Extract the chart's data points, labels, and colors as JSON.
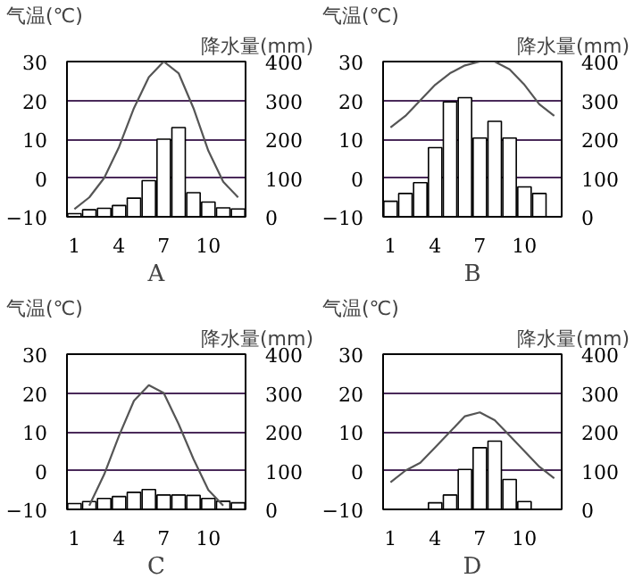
{
  "chart_data": [
    {
      "type": "bar",
      "xlabel": "A",
      "ylabel": "气温(℃)",
      "y2label": "降水量(mm)",
      "categories": [
        "1",
        null,
        null,
        "4",
        null,
        null,
        "7",
        null,
        null,
        "10",
        null,
        null
      ],
      "ylim": [
        -10,
        30
      ],
      "yticks": [
        -10,
        0,
        10,
        20,
        30
      ],
      "y2lim": [
        0,
        400
      ],
      "y2ticks": [
        0,
        100,
        200,
        300,
        400
      ],
      "grid": "y",
      "series": [
        {
          "type": "bar",
          "axis": "y2",
          "color": "#ffffff",
          "values": [
            8,
            18,
            22,
            29,
            48,
            93,
            200,
            230,
            62,
            38,
            23,
            20
          ]
        },
        {
          "type": "line",
          "axis": "y",
          "color": "#555555",
          "values": [
            -8,
            -5,
            0,
            8,
            18,
            26,
            30,
            27,
            18,
            7,
            -1,
            -5
          ]
        }
      ]
    },
    {
      "type": "bar",
      "xlabel": "B",
      "ylabel": "气温(℃)",
      "y2label": "降水量(mm)",
      "categories": [
        "1",
        null,
        null,
        "4",
        null,
        null,
        "7",
        null,
        null,
        "10",
        null,
        null
      ],
      "ylim": [
        -10,
        30
      ],
      "yticks": [
        -10,
        0,
        10,
        20,
        30
      ],
      "y2lim": [
        0,
        400
      ],
      "y2ticks": [
        0,
        100,
        200,
        300,
        400
      ],
      "grid": "y",
      "series": [
        {
          "type": "bar",
          "axis": "y2",
          "color": "#ffffff",
          "values": [
            40,
            60,
            88,
            178,
            296,
            307,
            203,
            246,
            203,
            77,
            60,
            null
          ]
        },
        {
          "type": "line",
          "axis": "y",
          "color": "#555555",
          "values": [
            13,
            16,
            20,
            24,
            27,
            29,
            30,
            30,
            28,
            24,
            19,
            16
          ]
        }
      ]
    },
    {
      "type": "bar",
      "xlabel": "C",
      "ylabel": "气温(℃)",
      "y2label": "降水量(mm)",
      "categories": [
        "1",
        null,
        null,
        "4",
        null,
        null,
        "7",
        null,
        null,
        "10",
        null,
        null
      ],
      "ylim": [
        -10,
        30
      ],
      "yticks": [
        -10,
        0,
        10,
        20,
        30
      ],
      "y2lim": [
        0,
        400
      ],
      "y2ticks": [
        0,
        100,
        200,
        300,
        400
      ],
      "grid": "y",
      "series": [
        {
          "type": "bar",
          "axis": "y2",
          "color": "#ffffff",
          "values": [
            15,
            20,
            28,
            33,
            44,
            51,
            37,
            37,
            36,
            28,
            21,
            17
          ]
        },
        {
          "type": "line",
          "axis": "y",
          "color": "#555555",
          "values": [
            null,
            -9,
            -1,
            9,
            18,
            22,
            20,
            12,
            3,
            -5,
            -9,
            null
          ]
        }
      ]
    },
    {
      "type": "bar",
      "xlabel": "D",
      "ylabel": "气温(℃)",
      "y2label": "降水量(mm)",
      "categories": [
        "1",
        null,
        null,
        "4",
        null,
        null,
        "7",
        null,
        null,
        "10",
        null,
        null
      ],
      "ylim": [
        -10,
        30
      ],
      "yticks": [
        -10,
        0,
        10,
        20,
        30
      ],
      "y2lim": [
        0,
        400
      ],
      "y2ticks": [
        0,
        100,
        200,
        300,
        400
      ],
      "grid": "y",
      "series": [
        {
          "type": "bar",
          "axis": "y2",
          "color": "#ffffff",
          "values": [
            null,
            null,
            null,
            17,
            37,
            103,
            159,
            176,
            77,
            20,
            null,
            null
          ]
        },
        {
          "type": "line",
          "axis": "y",
          "color": "#555555",
          "values": [
            -3,
            0,
            2,
            6,
            10,
            14,
            15,
            13,
            9,
            5,
            1,
            -2
          ]
        }
      ]
    }
  ]
}
